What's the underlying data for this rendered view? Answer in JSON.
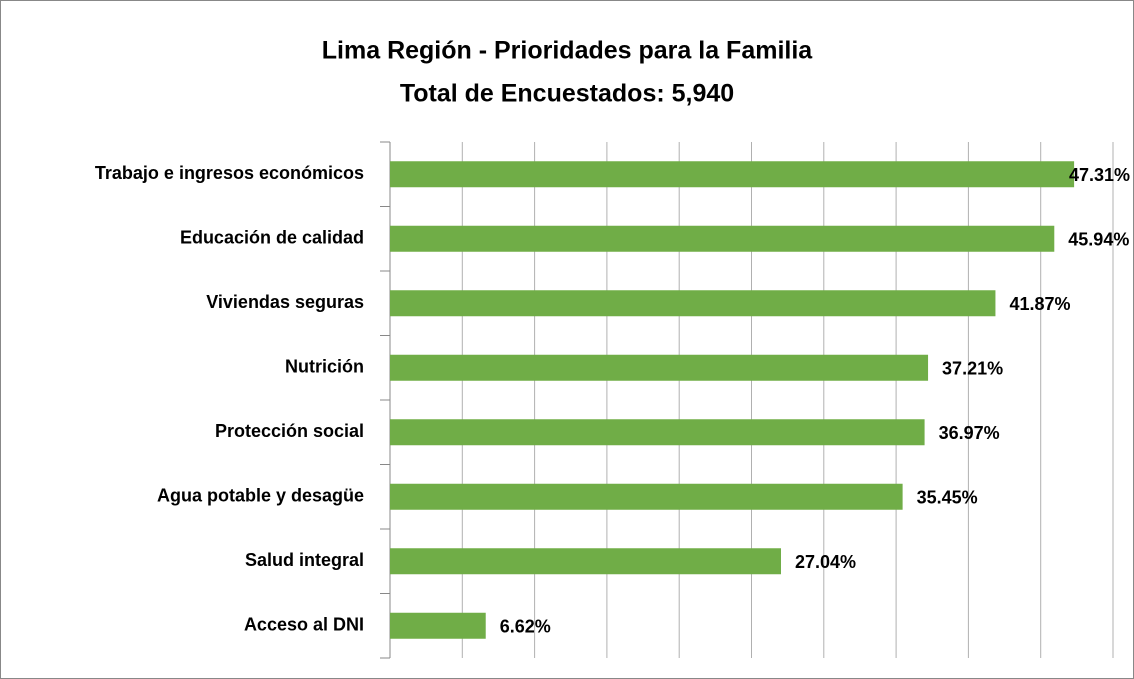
{
  "chart_data": {
    "type": "bar",
    "orientation": "horizontal",
    "title": "Lima Región - Prioridades para la Familia",
    "subtitle": "Total de Encuestados: 5,940",
    "categories": [
      "Trabajo e ingresos económicos",
      "Educación de calidad",
      "Viviendas seguras",
      "Nutrición",
      "Protección social",
      "Agua potable y desagüe",
      "Salud integral",
      "Acceso al DNI"
    ],
    "values": [
      47.31,
      45.94,
      41.87,
      37.21,
      36.97,
      35.45,
      27.04,
      6.62
    ],
    "value_labels": [
      "47.31%",
      "45.94%",
      "41.87%",
      "37.21%",
      "36.97%",
      "35.45%",
      "27.04%",
      "6.62%"
    ],
    "color": "#70ad47",
    "xlim": [
      0,
      50
    ],
    "xticks": [
      0,
      5,
      10,
      15,
      20,
      25,
      30,
      35,
      40,
      45,
      50
    ],
    "grid": true
  }
}
